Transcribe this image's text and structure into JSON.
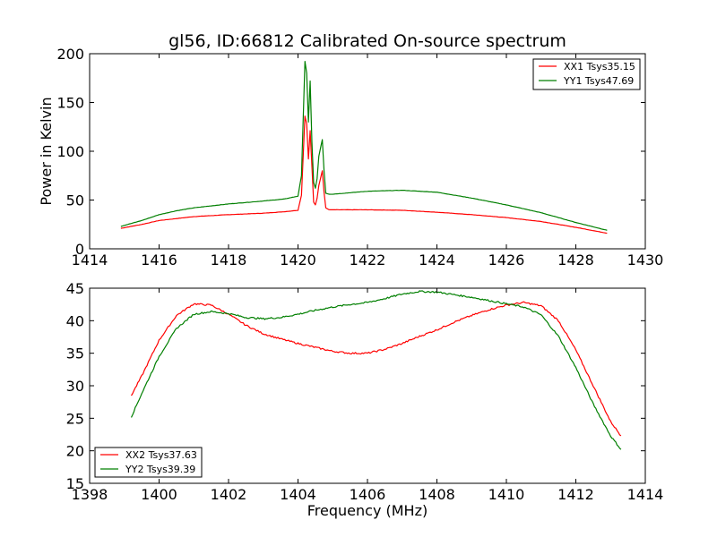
{
  "chart_data": [
    {
      "type": "line",
      "title": "gl56, ID:66812 Calibrated On-source spectrum",
      "xlabel": "",
      "ylabel": "Power in Kelvin",
      "xlim": [
        1414,
        1430
      ],
      "ylim": [
        0,
        200
      ],
      "xticks": [
        "1414",
        "1416",
        "1418",
        "1420",
        "1422",
        "1424",
        "1426",
        "1428",
        "1430"
      ],
      "yticks": [
        "0",
        "50",
        "100",
        "150",
        "200"
      ],
      "grid": false,
      "legend_position": "top-right",
      "series": [
        {
          "name": "XX1 Tsys35.15",
          "color": "#ff0000",
          "x": [
            1414.9,
            1415.5,
            1416.0,
            1416.5,
            1417.0,
            1418.0,
            1419.0,
            1419.6,
            1420.0,
            1420.1,
            1420.2,
            1420.25,
            1420.3,
            1420.35,
            1420.4,
            1420.45,
            1420.5,
            1420.55,
            1420.6,
            1420.7,
            1420.75,
            1420.8,
            1420.9,
            1421.0,
            1422.0,
            1423.0,
            1424.0,
            1425.0,
            1426.0,
            1427.0,
            1428.0,
            1428.9
          ],
          "y": [
            21,
            25,
            29,
            31,
            33,
            35,
            36.5,
            38,
            39.5,
            55,
            136,
            128,
            92,
            121,
            85,
            48,
            45,
            52,
            65,
            80,
            58,
            42,
            40,
            40,
            40,
            39.5,
            37.5,
            35,
            32,
            28,
            22,
            16
          ]
        },
        {
          "name": "YY1 Tsys47.69",
          "color": "#007f00",
          "x": [
            1414.9,
            1415.5,
            1416.0,
            1416.5,
            1417.0,
            1418.0,
            1419.0,
            1419.6,
            1420.0,
            1420.1,
            1420.2,
            1420.25,
            1420.3,
            1420.35,
            1420.4,
            1420.45,
            1420.5,
            1420.55,
            1420.6,
            1420.7,
            1420.75,
            1420.8,
            1420.9,
            1421.0,
            1422.0,
            1423.0,
            1424.0,
            1425.0,
            1426.0,
            1427.0,
            1428.0,
            1428.9
          ],
          "y": [
            23,
            29,
            35,
            39,
            42,
            46,
            49,
            51,
            54,
            75,
            192,
            180,
            130,
            172,
            110,
            68,
            62,
            72,
            95,
            112,
            80,
            57,
            56,
            56,
            59,
            60,
            58,
            52,
            45,
            37,
            27,
            19
          ]
        }
      ]
    },
    {
      "type": "line",
      "title": "",
      "xlabel": "Frequency (MHz)",
      "ylabel": "",
      "xlim": [
        1398,
        1414
      ],
      "ylim": [
        15,
        45
      ],
      "xticks": [
        "1398",
        "1400",
        "1402",
        "1404",
        "1406",
        "1408",
        "1410",
        "1412",
        "1414"
      ],
      "yticks": [
        "15",
        "20",
        "25",
        "30",
        "35",
        "40",
        "45"
      ],
      "grid": false,
      "legend_position": "bottom-left",
      "series": [
        {
          "name": "XX2 Tsys37.63",
          "color": "#ff0000",
          "x": [
            1399.2,
            1399.5,
            1400.0,
            1400.5,
            1401.0,
            1401.5,
            1402.0,
            1402.5,
            1403.0,
            1403.5,
            1404.0,
            1404.5,
            1405.0,
            1405.5,
            1406.0,
            1406.5,
            1407.0,
            1407.5,
            1408.0,
            1408.5,
            1409.0,
            1409.5,
            1410.0,
            1410.5,
            1411.0,
            1411.5,
            1412.0,
            1412.5,
            1413.0,
            1413.3
          ],
          "y": [
            28.5,
            31.5,
            37,
            40.8,
            42.6,
            42.4,
            41,
            39.3,
            38,
            37.2,
            36.5,
            35.9,
            35.3,
            35,
            35,
            35.6,
            36.5,
            37.6,
            38.6,
            39.8,
            40.8,
            41.7,
            42.4,
            42.8,
            42.3,
            40,
            35.5,
            30,
            24.5,
            22.3
          ]
        },
        {
          "name": "YY2 Tsys39.39",
          "color": "#007f00",
          "x": [
            1399.2,
            1399.5,
            1400.0,
            1400.5,
            1401.0,
            1401.5,
            1402.0,
            1402.5,
            1403.0,
            1403.5,
            1404.0,
            1404.5,
            1405.0,
            1405.5,
            1406.0,
            1406.5,
            1407.0,
            1407.5,
            1408.0,
            1408.5,
            1409.0,
            1409.5,
            1410.0,
            1410.5,
            1411.0,
            1411.5,
            1412.0,
            1412.5,
            1413.0,
            1413.3
          ],
          "y": [
            25.2,
            28.8,
            34.5,
            38.8,
            41,
            41.4,
            41.1,
            40.5,
            40.3,
            40.5,
            41,
            41.6,
            42.1,
            42.5,
            42.8,
            43.4,
            44.1,
            44.5,
            44.4,
            44,
            43.6,
            43.1,
            42.6,
            42.1,
            40.9,
            37.6,
            32.8,
            27.2,
            22.3,
            20.2
          ]
        }
      ]
    }
  ]
}
